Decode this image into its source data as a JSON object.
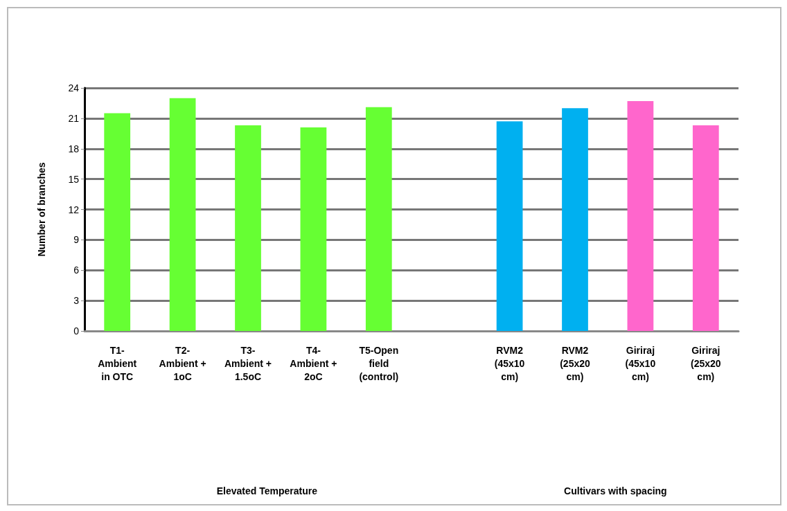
{
  "chart_data": {
    "type": "bar",
    "ylabel": "Number of branches",
    "categories": [
      "T1-\nAmbient\nin OTC",
      "T2-\nAmbient +\n1oC",
      "T3-\nAmbient +\n1.5oC",
      "T4-\nAmbient +\n2oC",
      "T5-Open\nfield\n(control)",
      null,
      "RVM2\n(45x10\ncm)",
      "RVM2\n(25x20\ncm)",
      "Giriraj\n(45x10\ncm)",
      "Giriraj\n(25x20\ncm)"
    ],
    "values": [
      21.5,
      23.0,
      20.3,
      20.1,
      22.1,
      null,
      20.7,
      22.0,
      22.7,
      20.3
    ],
    "colors": [
      "#66ff33",
      "#66ff33",
      "#66ff33",
      "#66ff33",
      "#66ff33",
      null,
      "#00b0f0",
      "#00b0f0",
      "#ff66cc",
      "#ff66cc"
    ],
    "ylim": [
      0,
      24
    ],
    "yticks": [
      0,
      3,
      6,
      9,
      12,
      15,
      18,
      21,
      24
    ],
    "grid": "y",
    "annotations": [
      "Elevated Temperature",
      "Cultivars with spacing"
    ]
  }
}
